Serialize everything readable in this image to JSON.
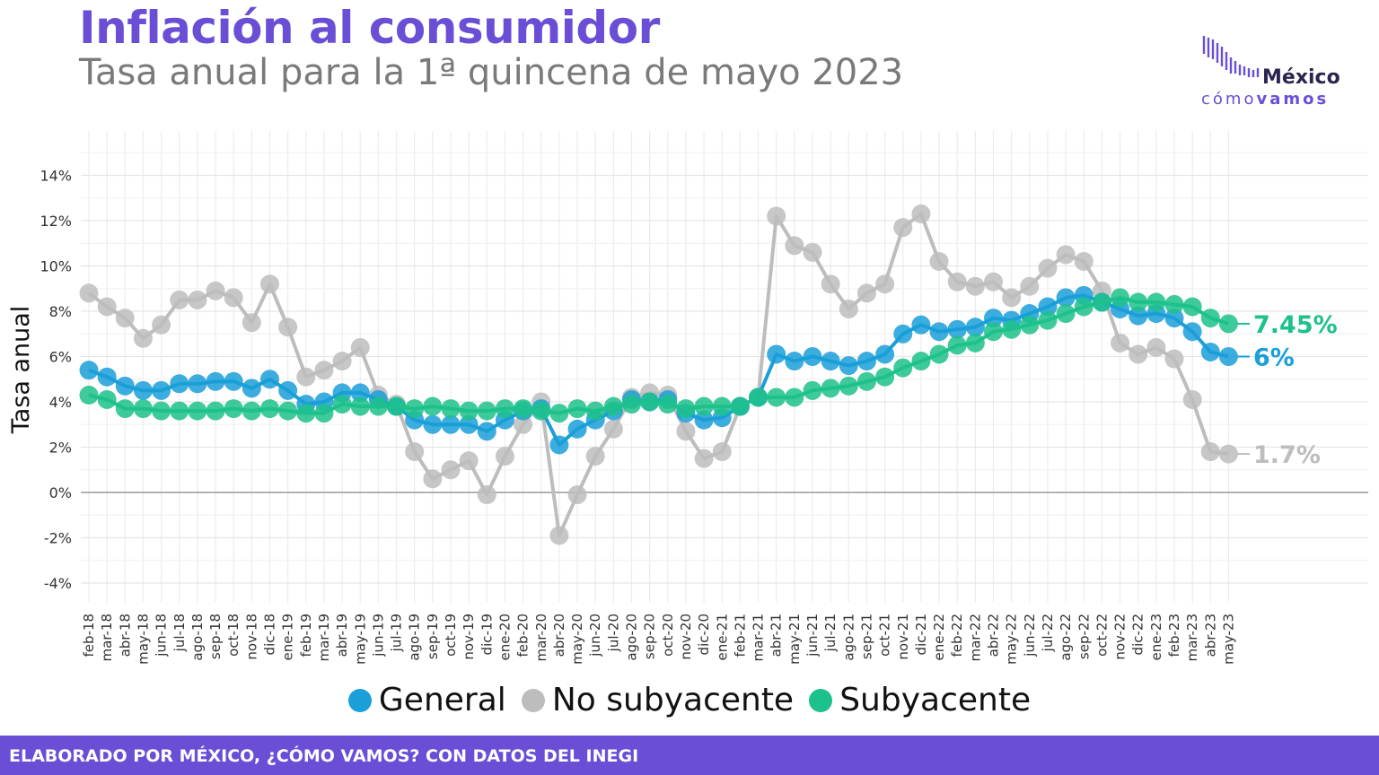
{
  "header": {
    "title": "Inflación al consumidor",
    "subtitle": "Tasa anual para la 1ª quincena de mayo 2023"
  },
  "logo": {
    "name_top": "México",
    "name_bottom_light": "cómo",
    "name_bottom_bold": "vamos",
    "icon": "bar-logo-icon",
    "color": "#6a4fd6"
  },
  "footer": {
    "text": "ELABORADO POR MÉXICO, ¿CÓMO VAMOS? CON DATOS DEL INEGI"
  },
  "chart_data": {
    "type": "line",
    "ylabel": "Tasa anual",
    "xlabel": "",
    "ylim": [
      -4.8,
      16
    ],
    "yticks": [
      -4,
      -2,
      0,
      2,
      4,
      6,
      8,
      10,
      12,
      14
    ],
    "ytick_labels": [
      "-4%",
      "-2%",
      "0%",
      "2%",
      "4%",
      "6%",
      "8%",
      "10%",
      "12%",
      "14%"
    ],
    "grid": true,
    "legend_position": "bottom",
    "categories": [
      "feb-18",
      "mar-18",
      "abr-18",
      "may-18",
      "jun-18",
      "jul-18",
      "ago-18",
      "sep-18",
      "oct-18",
      "nov-18",
      "dic-18",
      "ene-19",
      "feb-19",
      "mar-19",
      "abr-19",
      "may-19",
      "jun-19",
      "jul-19",
      "ago-19",
      "sep-19",
      "oct-19",
      "nov-19",
      "dic-19",
      "ene-20",
      "feb-20",
      "mar-20",
      "abr-20",
      "may-20",
      "jun-20",
      "jul-20",
      "ago-20",
      "sep-20",
      "oct-20",
      "nov-20",
      "dic-20",
      "ene-21",
      "feb-21",
      "mar-21",
      "abr-21",
      "may-21",
      "jun-21",
      "jul-21",
      "ago-21",
      "sep-21",
      "oct-21",
      "nov-21",
      "dic-21",
      "ene-22",
      "feb-22",
      "mar-22",
      "abr-22",
      "may-22",
      "jun-22",
      "jul-22",
      "ago-22",
      "sep-22",
      "oct-22",
      "nov-22",
      "dic-22",
      "ene-23",
      "feb-23",
      "mar-23",
      "abr-23",
      "may-23"
    ],
    "series": [
      {
        "name": "No subyacente",
        "color": "#bdbdbd",
        "end_label": "1.7%",
        "points": [
          [
            0,
            8.8
          ],
          [
            1,
            8.2
          ],
          [
            2,
            7.7
          ],
          [
            3,
            6.8
          ],
          [
            4,
            7.4
          ],
          [
            5,
            8.5
          ],
          [
            6,
            8.5
          ],
          [
            7,
            8.9
          ],
          [
            8,
            8.6
          ],
          [
            9,
            7.5
          ],
          [
            10,
            9.2
          ],
          [
            11,
            7.3
          ],
          [
            12,
            5.1
          ],
          [
            13,
            5.4
          ],
          [
            14,
            5.8
          ],
          [
            15,
            6.4
          ],
          [
            16,
            4.3
          ],
          [
            17,
            3.9
          ],
          [
            18,
            1.8
          ],
          [
            19,
            0.6
          ],
          [
            20,
            1.0
          ],
          [
            21,
            1.4
          ],
          [
            22,
            -0.1
          ],
          [
            23,
            1.6
          ],
          [
            24,
            3.0
          ],
          [
            25,
            4.0
          ],
          [
            26,
            -1.9
          ],
          [
            27,
            -0.1
          ],
          [
            28,
            1.6
          ],
          [
            29,
            2.8
          ],
          [
            30,
            4.2
          ],
          [
            31,
            4.4
          ],
          [
            32,
            4.3
          ],
          [
            33,
            2.7
          ],
          [
            34,
            1.5
          ],
          [
            35,
            1.8
          ],
          [
            36,
            3.8
          ],
          [
            37,
            4.2
          ],
          [
            38,
            12.2
          ],
          [
            39,
            10.9
          ],
          [
            40,
            10.6
          ],
          [
            41,
            9.2
          ],
          [
            42,
            8.1
          ],
          [
            43,
            8.8
          ],
          [
            44,
            9.2
          ],
          [
            45,
            11.7
          ],
          [
            46,
            12.3
          ],
          [
            47,
            10.2
          ],
          [
            48,
            9.3
          ],
          [
            49,
            9.1
          ],
          [
            50,
            9.3
          ],
          [
            51,
            8.6
          ],
          [
            52,
            9.1
          ],
          [
            53,
            9.9
          ],
          [
            54,
            10.5
          ],
          [
            55,
            10.2
          ],
          [
            56,
            8.9
          ],
          [
            57,
            6.6
          ],
          [
            58,
            6.1
          ],
          [
            59,
            6.4
          ],
          [
            60,
            5.9
          ],
          [
            61,
            4.1
          ],
          [
            62,
            1.8
          ],
          [
            63,
            1.7
          ]
        ]
      },
      {
        "name": "General",
        "color": "#1a9fd8",
        "end_label": "6%",
        "points": [
          [
            0,
            5.4
          ],
          [
            1,
            5.1
          ],
          [
            2,
            4.7
          ],
          [
            3,
            4.5
          ],
          [
            4,
            4.5
          ],
          [
            5,
            4.8
          ],
          [
            6,
            4.8
          ],
          [
            7,
            4.9
          ],
          [
            8,
            4.9
          ],
          [
            9,
            4.6
          ],
          [
            10,
            5.0
          ],
          [
            11,
            4.5
          ],
          [
            12,
            3.9
          ],
          [
            13,
            4.0
          ],
          [
            14,
            4.4
          ],
          [
            15,
            4.4
          ],
          [
            16,
            4.1
          ],
          [
            17,
            3.8
          ],
          [
            18,
            3.2
          ],
          [
            19,
            3.0
          ],
          [
            20,
            3.0
          ],
          [
            21,
            3.0
          ],
          [
            22,
            2.7
          ],
          [
            23,
            3.2
          ],
          [
            24,
            3.6
          ],
          [
            25,
            3.7
          ],
          [
            26,
            2.1
          ],
          [
            27,
            2.8
          ],
          [
            28,
            3.2
          ],
          [
            29,
            3.6
          ],
          [
            30,
            4.1
          ],
          [
            31,
            4.0
          ],
          [
            32,
            4.1
          ],
          [
            33,
            3.5
          ],
          [
            34,
            3.2
          ],
          [
            35,
            3.3
          ],
          [
            36,
            3.8
          ],
          [
            37,
            4.2
          ],
          [
            38,
            6.1
          ],
          [
            39,
            5.8
          ],
          [
            40,
            6.0
          ],
          [
            41,
            5.8
          ],
          [
            42,
            5.6
          ],
          [
            43,
            5.8
          ],
          [
            44,
            6.1
          ],
          [
            45,
            7.0
          ],
          [
            46,
            7.4
          ],
          [
            47,
            7.1
          ],
          [
            48,
            7.2
          ],
          [
            49,
            7.3
          ],
          [
            50,
            7.7
          ],
          [
            51,
            7.6
          ],
          [
            52,
            7.9
          ],
          [
            53,
            8.2
          ],
          [
            54,
            8.6
          ],
          [
            55,
            8.7
          ],
          [
            56,
            8.4
          ],
          [
            57,
            8.1
          ],
          [
            58,
            7.8
          ],
          [
            59,
            7.9
          ],
          [
            60,
            7.7
          ],
          [
            61,
            7.1
          ],
          [
            62,
            6.2
          ],
          [
            63,
            6.0
          ]
        ]
      },
      {
        "name": "Subyacente",
        "color": "#1dc18b",
        "end_label": "7.45%",
        "points": [
          [
            0,
            4.3
          ],
          [
            1,
            4.1
          ],
          [
            2,
            3.7
          ],
          [
            3,
            3.7
          ],
          [
            4,
            3.6
          ],
          [
            5,
            3.6
          ],
          [
            6,
            3.6
          ],
          [
            7,
            3.6
          ],
          [
            8,
            3.7
          ],
          [
            9,
            3.6
          ],
          [
            10,
            3.7
          ],
          [
            11,
            3.6
          ],
          [
            12,
            3.5
          ],
          [
            13,
            3.5
          ],
          [
            14,
            3.9
          ],
          [
            15,
            3.8
          ],
          [
            16,
            3.8
          ],
          [
            17,
            3.8
          ],
          [
            18,
            3.7
          ],
          [
            19,
            3.8
          ],
          [
            20,
            3.7
          ],
          [
            21,
            3.6
          ],
          [
            22,
            3.6
          ],
          [
            23,
            3.7
          ],
          [
            24,
            3.7
          ],
          [
            25,
            3.6
          ],
          [
            26,
            3.5
          ],
          [
            27,
            3.7
          ],
          [
            28,
            3.6
          ],
          [
            29,
            3.8
          ],
          [
            30,
            3.9
          ],
          [
            31,
            4.0
          ],
          [
            32,
            3.9
          ],
          [
            33,
            3.7
          ],
          [
            34,
            3.8
          ],
          [
            35,
            3.8
          ],
          [
            36,
            3.8
          ],
          [
            37,
            4.2
          ],
          [
            38,
            4.2
          ],
          [
            39,
            4.2
          ],
          [
            40,
            4.5
          ],
          [
            41,
            4.6
          ],
          [
            42,
            4.7
          ],
          [
            43,
            4.9
          ],
          [
            44,
            5.1
          ],
          [
            45,
            5.5
          ],
          [
            46,
            5.8
          ],
          [
            47,
            6.1
          ],
          [
            48,
            6.5
          ],
          [
            49,
            6.6
          ],
          [
            50,
            7.1
          ],
          [
            51,
            7.2
          ],
          [
            52,
            7.4
          ],
          [
            53,
            7.6
          ],
          [
            54,
            7.9
          ],
          [
            55,
            8.2
          ],
          [
            56,
            8.4
          ],
          [
            57,
            8.6
          ],
          [
            58,
            8.4
          ],
          [
            59,
            8.4
          ],
          [
            60,
            8.3
          ],
          [
            61,
            8.2
          ],
          [
            62,
            7.7
          ],
          [
            63,
            7.45
          ]
        ]
      }
    ]
  },
  "legend": {
    "items": [
      {
        "name": "General",
        "color": "#1a9fd8"
      },
      {
        "name": "No subyacente",
        "color": "#bdbdbd"
      },
      {
        "name": "Subyacente",
        "color": "#1dc18b"
      }
    ]
  }
}
